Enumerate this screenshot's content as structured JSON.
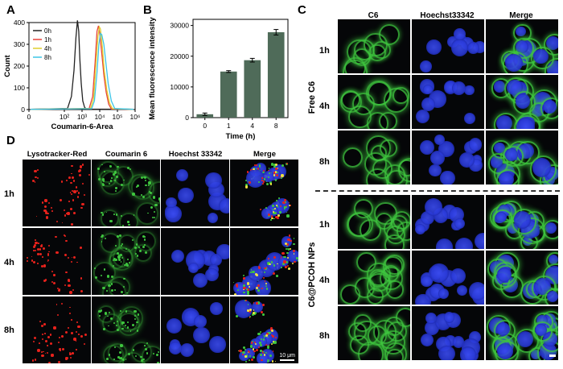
{
  "panels": {
    "A": {
      "label": "A"
    },
    "B": {
      "label": "B"
    },
    "C": {
      "label": "C"
    },
    "D": {
      "label": "D"
    }
  },
  "chart_data": [
    {
      "type": "line",
      "panel": "A",
      "xlabel": "Coumarin-6-Area",
      "ylabel": "Count",
      "x_scale": "log",
      "xlim": [
        1,
        1000000
      ],
      "ylim": [
        0,
        400
      ],
      "yticks": [
        "0",
        "100",
        "200",
        "300",
        "400"
      ],
      "xticks": [
        "0",
        "10²",
        "10³",
        "10⁴",
        "10⁵",
        "10⁶"
      ],
      "legend_position": "top-left",
      "series": [
        {
          "name": "0h",
          "color": "#222222",
          "x": [
            150,
            250,
            350,
            450,
            550,
            650,
            750,
            900,
            1100,
            1400,
            1800
          ],
          "y": [
            5,
            60,
            180,
            330,
            410,
            360,
            230,
            120,
            40,
            10,
            2
          ]
        },
        {
          "name": "1h",
          "color": "#e8433a",
          "x": [
            2500,
            4000,
            5500,
            7000,
            8500,
            10000,
            13000,
            17000,
            23000,
            32000,
            45000
          ],
          "y": [
            5,
            60,
            220,
            360,
            385,
            350,
            260,
            160,
            80,
            25,
            3
          ]
        },
        {
          "name": "4h",
          "color": "#e0cf2d",
          "x": [
            3000,
            4500,
            6000,
            8000,
            9500,
            11000,
            14000,
            18000,
            25000,
            36000,
            52000
          ],
          "y": [
            5,
            50,
            200,
            340,
            380,
            370,
            290,
            180,
            90,
            30,
            4
          ]
        },
        {
          "name": "8h",
          "color": "#3ec6e6",
          "x": [
            3500,
            5000,
            7000,
            9000,
            11000,
            13000,
            17000,
            22000,
            30000,
            45000,
            70000
          ],
          "y": [
            4,
            40,
            170,
            300,
            350,
            345,
            300,
            220,
            120,
            40,
            5
          ]
        }
      ]
    },
    {
      "type": "bar",
      "panel": "B",
      "categories": [
        "0",
        "1",
        "4",
        "8"
      ],
      "values": [
        1100,
        15000,
        18700,
        27800
      ],
      "errors": [
        400,
        300,
        600,
        900
      ],
      "xlabel": "Time (h)",
      "ylabel": "Mean fluorescence intensity",
      "ylim": [
        0,
        32000
      ],
      "yticks": [
        "0",
        "10000",
        "20000",
        "30000"
      ],
      "bar_color": "#4f6b59"
    }
  ],
  "panelC": {
    "headers": [
      "C6",
      "Hoechst33342",
      "Merge"
    ],
    "group1": {
      "label": "Free C6",
      "rows": [
        "1h",
        "4h",
        "8h"
      ]
    },
    "group2": {
      "label": "C6@PCOH NPs",
      "rows": [
        "1h",
        "4h",
        "8h"
      ]
    }
  },
  "panelD": {
    "headers": [
      "Lysotracker-Red",
      "Coumarin 6",
      "Hoechst 33342",
      "Merge"
    ],
    "rows": [
      "1h",
      "4h",
      "8h"
    ],
    "scalebar": "10 μm"
  },
  "colors": {
    "green": "#3fc63f",
    "blue": "#2a3ad8",
    "red": "#e8221c"
  }
}
